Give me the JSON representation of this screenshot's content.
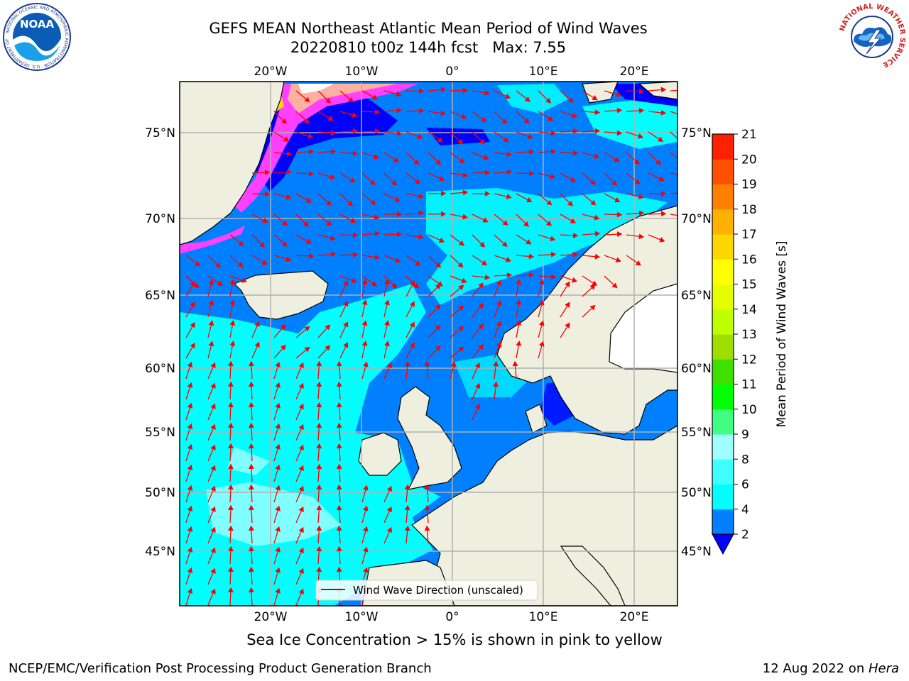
{
  "title": {
    "line1": "GEFS MEAN Northeast Atlantic Mean Period of Wind Waves",
    "line2": "20220810 t00z 144h fcst   Max: 7.55"
  },
  "logos": {
    "left": {
      "icon": "noaa-logo",
      "text": "NOAA",
      "ring_text": "NATIONAL OCEANIC AND ATMOSPHERIC ADMINISTRATION · U.S. DEPARTMENT OF COMMERCE"
    },
    "right": {
      "icon": "nws-logo",
      "ring_text": "NATIONAL WEATHER SERVICE"
    }
  },
  "map": {
    "lon_labels": [
      "20°W",
      "10°W",
      "0°",
      "10°E",
      "20°E"
    ],
    "lat_labels": [
      "75°N",
      "70°N",
      "65°N",
      "60°N",
      "55°N",
      "50°N",
      "45°N"
    ],
    "legend_label": "Wind Wave Direction (unscaled)",
    "colors": {
      "land": "#efefdf",
      "sea_low": "#0080ff",
      "sea_mid": "#00ffff",
      "sea_very_low": "#0000ff",
      "ice_pink": "#ff40ff",
      "arrow": "#ff0000",
      "grid": "#b0b0b0"
    }
  },
  "colorbar": {
    "label": "Mean Period of Wind Waves [s]",
    "ticks": [
      "2",
      "4",
      "6",
      "8",
      "9",
      "10",
      "11",
      "12",
      "13",
      "14",
      "15",
      "16",
      "17",
      "18",
      "19",
      "20",
      "21"
    ],
    "colors": [
      "#0080ff",
      "#00ffff",
      "#40ffff",
      "#9fffff",
      "#40ff80",
      "#00ff00",
      "#40df00",
      "#9fdf00",
      "#bfff00",
      "#e6ff00",
      "#ffff00",
      "#ffd700",
      "#ffb000",
      "#ff8000",
      "#ff5000",
      "#ff2000"
    ],
    "under_color": "#0000ff"
  },
  "subcaption": "Sea Ice Concentration > 15% is shown in pink to yellow",
  "footer": {
    "left": "NCEP/EMC/Verification Post Processing Product Generation Branch",
    "right_prefix": "12 Aug 2022 on ",
    "right_host": "Hera"
  }
}
